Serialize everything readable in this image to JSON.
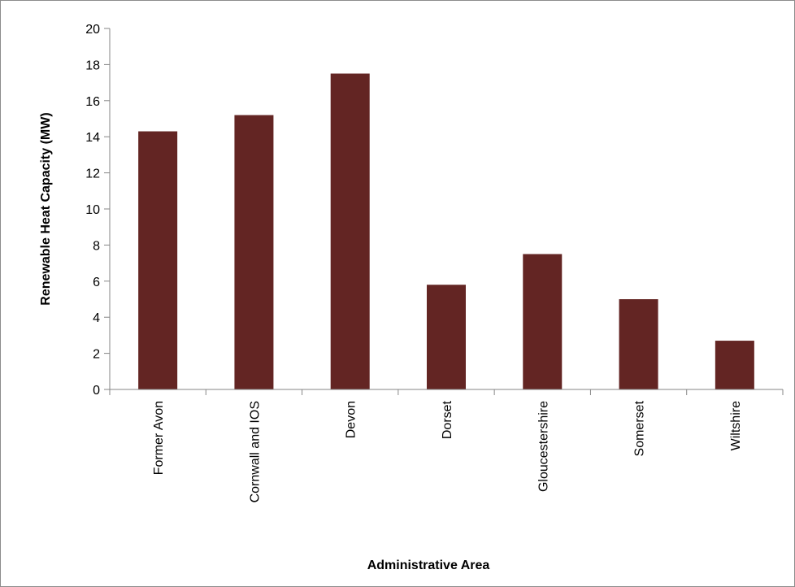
{
  "chart_data": {
    "type": "bar",
    "title": "",
    "xlabel": "Administrative Area",
    "ylabel": "Renewable Heat Capacity (MW)",
    "categories": [
      "Former Avon",
      "Cornwall and IOS",
      "Devon",
      "Dorset",
      "Gloucestershire",
      "Somerset",
      "Wiltshire"
    ],
    "values": [
      14.3,
      15.2,
      17.5,
      5.8,
      7.5,
      5.0,
      2.7
    ],
    "ylim": [
      0,
      20
    ],
    "yticks": [
      0,
      2,
      4,
      6,
      8,
      10,
      12,
      14,
      16,
      18,
      20
    ],
    "grid": false,
    "legend": "none",
    "colors": {
      "bar": "#632523",
      "axis": "#868686",
      "frame": "#8c8c8c"
    }
  }
}
